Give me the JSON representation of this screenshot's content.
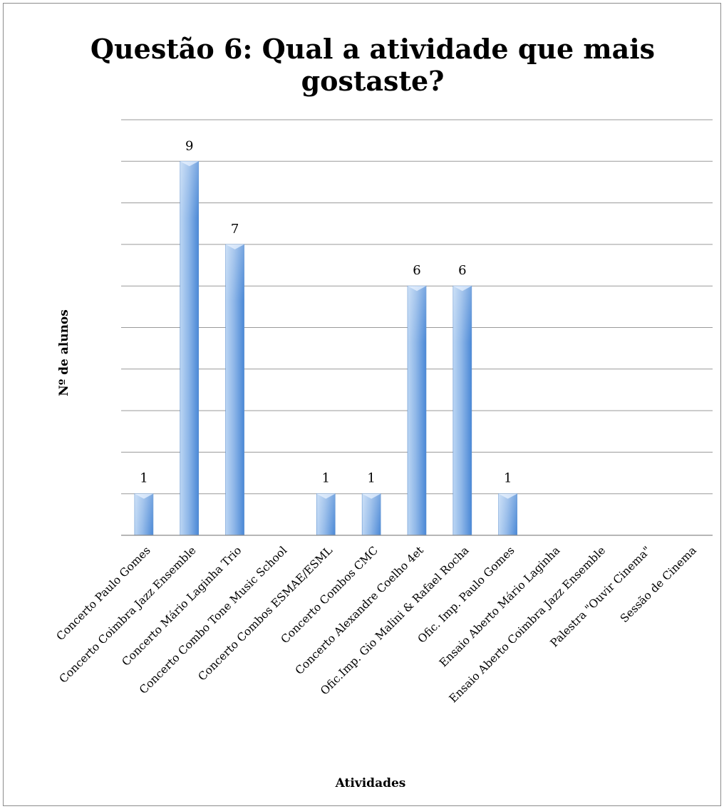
{
  "chart_data": {
    "type": "bar",
    "title_lines": [
      "Questão 6: Qual a atividade que mais",
      "gostaste?"
    ],
    "xlabel": "Atividades",
    "ylabel": "Nº de alunos",
    "ylim": [
      0,
      10
    ],
    "y_gridline_step": 1,
    "grid": true,
    "legend": "none",
    "categories": [
      "Concerto Paulo Gomes",
      "Concerto Coimbra Jazz Ensemble",
      "Concerto Mário Laginha Trio",
      "Concerto Combo Tone Music School",
      "Concerto Combos ESMAE/ESML",
      "Concerto Combos CMC",
      "Concerto Alexandre Coelho 4et",
      "Ofic.Imp. Gio Malini & Rafael Rocha",
      "Ofic. Imp. Paulo Gomes",
      "Ensaio Aberto Mário Laginha",
      "Ensaio Aberto Coimbra Jazz Ensemble",
      "Palestra \"Ouvir Cinema\"",
      "Sessão de Cinema"
    ],
    "values": [
      1,
      9,
      7,
      0,
      1,
      1,
      6,
      6,
      1,
      0,
      0,
      0,
      0
    ],
    "data_labels": [
      "1",
      "9",
      "7",
      "",
      "1",
      "1",
      "6",
      "6",
      "1",
      "",
      "",
      "",
      ""
    ],
    "colors": {
      "bar_light": "#bcd6f4",
      "bar_mid": "#8fb7e8",
      "bar_dark": "#4a88d6",
      "bar_edge": "#5b8fcf"
    }
  }
}
